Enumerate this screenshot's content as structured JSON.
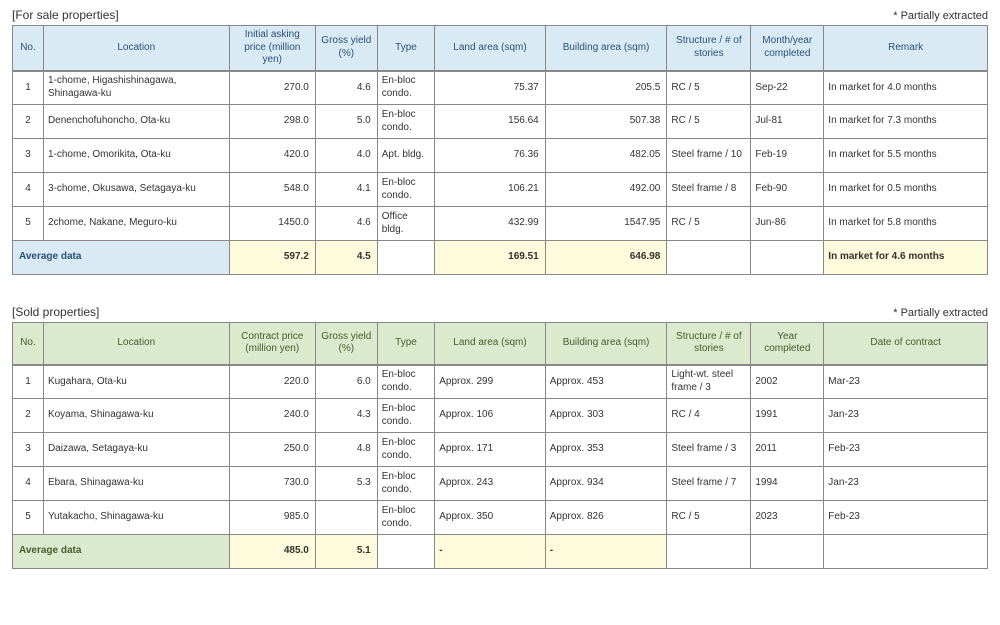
{
  "tables": [
    {
      "id": "for-sale",
      "title": "[For sale properties]",
      "note": "* Partially extracted",
      "head_class": "blue-head",
      "avg_label_class": "avg-label-blue",
      "columns": [
        {
          "key": "no",
          "label": "No.",
          "w": "c-no",
          "align": "num-center"
        },
        {
          "key": "location",
          "label": "Location",
          "w": "c-loc",
          "align": "txt-left"
        },
        {
          "key": "price",
          "label": "Initial asking price (million yen)",
          "w": "c-price",
          "align": "num-right"
        },
        {
          "key": "yield",
          "label": "Gross yield (%)",
          "w": "c-yield",
          "align": "num-right"
        },
        {
          "key": "type",
          "label": "Type",
          "w": "c-type",
          "align": "txt-left"
        },
        {
          "key": "land",
          "label": "Land area (sqm)",
          "w": "c-land",
          "align": "num-right"
        },
        {
          "key": "bldg",
          "label": "Building area (sqm)",
          "w": "c-bldg",
          "align": "num-right"
        },
        {
          "key": "struct",
          "label": "Structure / # of stories",
          "w": "c-struct",
          "align": "txt-left"
        },
        {
          "key": "date",
          "label": "Month/year completed",
          "w": "c-date",
          "align": "txt-left"
        },
        {
          "key": "remark",
          "label": "Remark",
          "w": "c-remark",
          "align": "txt-left"
        }
      ],
      "rows": [
        {
          "no": "1",
          "location": "1-chome, Higashishinagawa, Shinagawa-ku",
          "price": "270.0",
          "yield": "4.6",
          "type": "En-bloc condo.",
          "land": "75.37",
          "bldg": "205.5",
          "struct": "RC / 5",
          "date": "Sep-22",
          "remark": "In market for 4.0 months"
        },
        {
          "no": "2",
          "location": "Denenchofuhoncho, Ota-ku",
          "price": "298.0",
          "yield": "5.0",
          "type": "En-bloc condo.",
          "land": "156.64",
          "bldg": "507.38",
          "struct": "RC / 5",
          "date": "Jul-81",
          "remark": "In market for 7.3 months"
        },
        {
          "no": "3",
          "location": "1-chome, Omorikita, Ota-ku",
          "price": "420.0",
          "yield": "4.0",
          "type": "Apt. bldg.",
          "land": "76.36",
          "bldg": "482.05",
          "struct": "Steel frame / 10",
          "date": "Feb-19",
          "remark": "In market for 5.5 months"
        },
        {
          "no": "4",
          "location": "3-chome, Okusawa, Setagaya-ku",
          "price": "548.0",
          "yield": "4.1",
          "type": "En-bloc condo.",
          "land": "106.21",
          "bldg": "492.00",
          "struct": "Steel frame / 8",
          "date": "Feb-90",
          "remark": "In market for 0.5 months"
        },
        {
          "no": "5",
          "location": "2chome, Nakane, Meguro-ku",
          "price": "1450.0",
          "yield": "4.6",
          "type": "Office bldg.",
          "land": "432.99",
          "bldg": "1547.95",
          "struct": "RC / 5",
          "date": "Jun-86",
          "remark": "In market for 5.8 months"
        }
      ],
      "average": {
        "label": "Average data",
        "price": "597.2",
        "yield": "4.5",
        "type": "",
        "land": "169.51",
        "bldg": "646.98",
        "struct": "",
        "date": "",
        "remark": "In market for 4.6 months",
        "yellow": [
          "price",
          "yield",
          "land",
          "bldg",
          "remark"
        ]
      }
    },
    {
      "id": "sold",
      "title": "[Sold properties]",
      "note": "* Partially extracted",
      "head_class": "green-head",
      "avg_label_class": "avg-label-green",
      "columns": [
        {
          "key": "no",
          "label": "No.",
          "w": "c-no",
          "align": "num-center"
        },
        {
          "key": "location",
          "label": "Location",
          "w": "c-loc",
          "align": "txt-left"
        },
        {
          "key": "price",
          "label": "Contract price (million yen)",
          "w": "c-price",
          "align": "num-right"
        },
        {
          "key": "yield",
          "label": "Gross yield (%)",
          "w": "c-yield",
          "align": "num-right"
        },
        {
          "key": "type",
          "label": "Type",
          "w": "c-type",
          "align": "txt-left"
        },
        {
          "key": "land",
          "label": "Land area (sqm)",
          "w": "c-land",
          "align": "txt-left"
        },
        {
          "key": "bldg",
          "label": "Building area (sqm)",
          "w": "c-bldg",
          "align": "txt-left"
        },
        {
          "key": "struct",
          "label": "Structure / # of stories",
          "w": "c-struct",
          "align": "txt-left"
        },
        {
          "key": "date",
          "label": "Year completed",
          "w": "c-date",
          "align": "txt-left"
        },
        {
          "key": "remark",
          "label": "Date of contract",
          "w": "c-remark",
          "align": "txt-left"
        }
      ],
      "rows": [
        {
          "no": "1",
          "location": "Kugahara, Ota-ku",
          "price": "220.0",
          "yield": "6.0",
          "type": "En-bloc condo.",
          "land": "Approx. 299",
          "bldg": "Approx. 453",
          "struct": "Light-wt. steel frame / 3",
          "date": "2002",
          "remark": "Mar-23"
        },
        {
          "no": "2",
          "location": "Koyama, Shinagawa-ku",
          "price": "240.0",
          "yield": "4.3",
          "type": "En-bloc condo.",
          "land": "Approx. 106",
          "bldg": "Approx. 303",
          "struct": "RC / 4",
          "date": "1991",
          "remark": "Jan-23"
        },
        {
          "no": "3",
          "location": "Daizawa, Setagaya-ku",
          "price": "250.0",
          "yield": "4.8",
          "type": "En-bloc condo.",
          "land": "Approx. 171",
          "bldg": "Approx. 353",
          "struct": "Steel frame / 3",
          "date": "2011",
          "remark": "Feb-23"
        },
        {
          "no": "4",
          "location": "Ebara, Shinagawa-ku",
          "price": "730.0",
          "yield": "5.3",
          "type": "En-bloc condo.",
          "land": "Approx. 243",
          "bldg": "Approx. 934",
          "struct": "Steel frame / 7",
          "date": "1994",
          "remark": "Jan-23"
        },
        {
          "no": "5",
          "location": "Yutakacho, Shinagawa-ku",
          "price": "985.0",
          "yield": "",
          "type": "En-bloc condo.",
          "land": "Approx. 350",
          "bldg": "Approx. 826",
          "struct": "RC / 5",
          "date": "2023",
          "remark": "Feb-23"
        }
      ],
      "average": {
        "label": "Average data",
        "price": "485.0",
        "yield": "5.1",
        "type": "",
        "land": "-",
        "bldg": "-",
        "struct": "",
        "date": "",
        "remark": "",
        "yellow": [
          "price",
          "yield",
          "land",
          "bldg"
        ]
      }
    }
  ]
}
